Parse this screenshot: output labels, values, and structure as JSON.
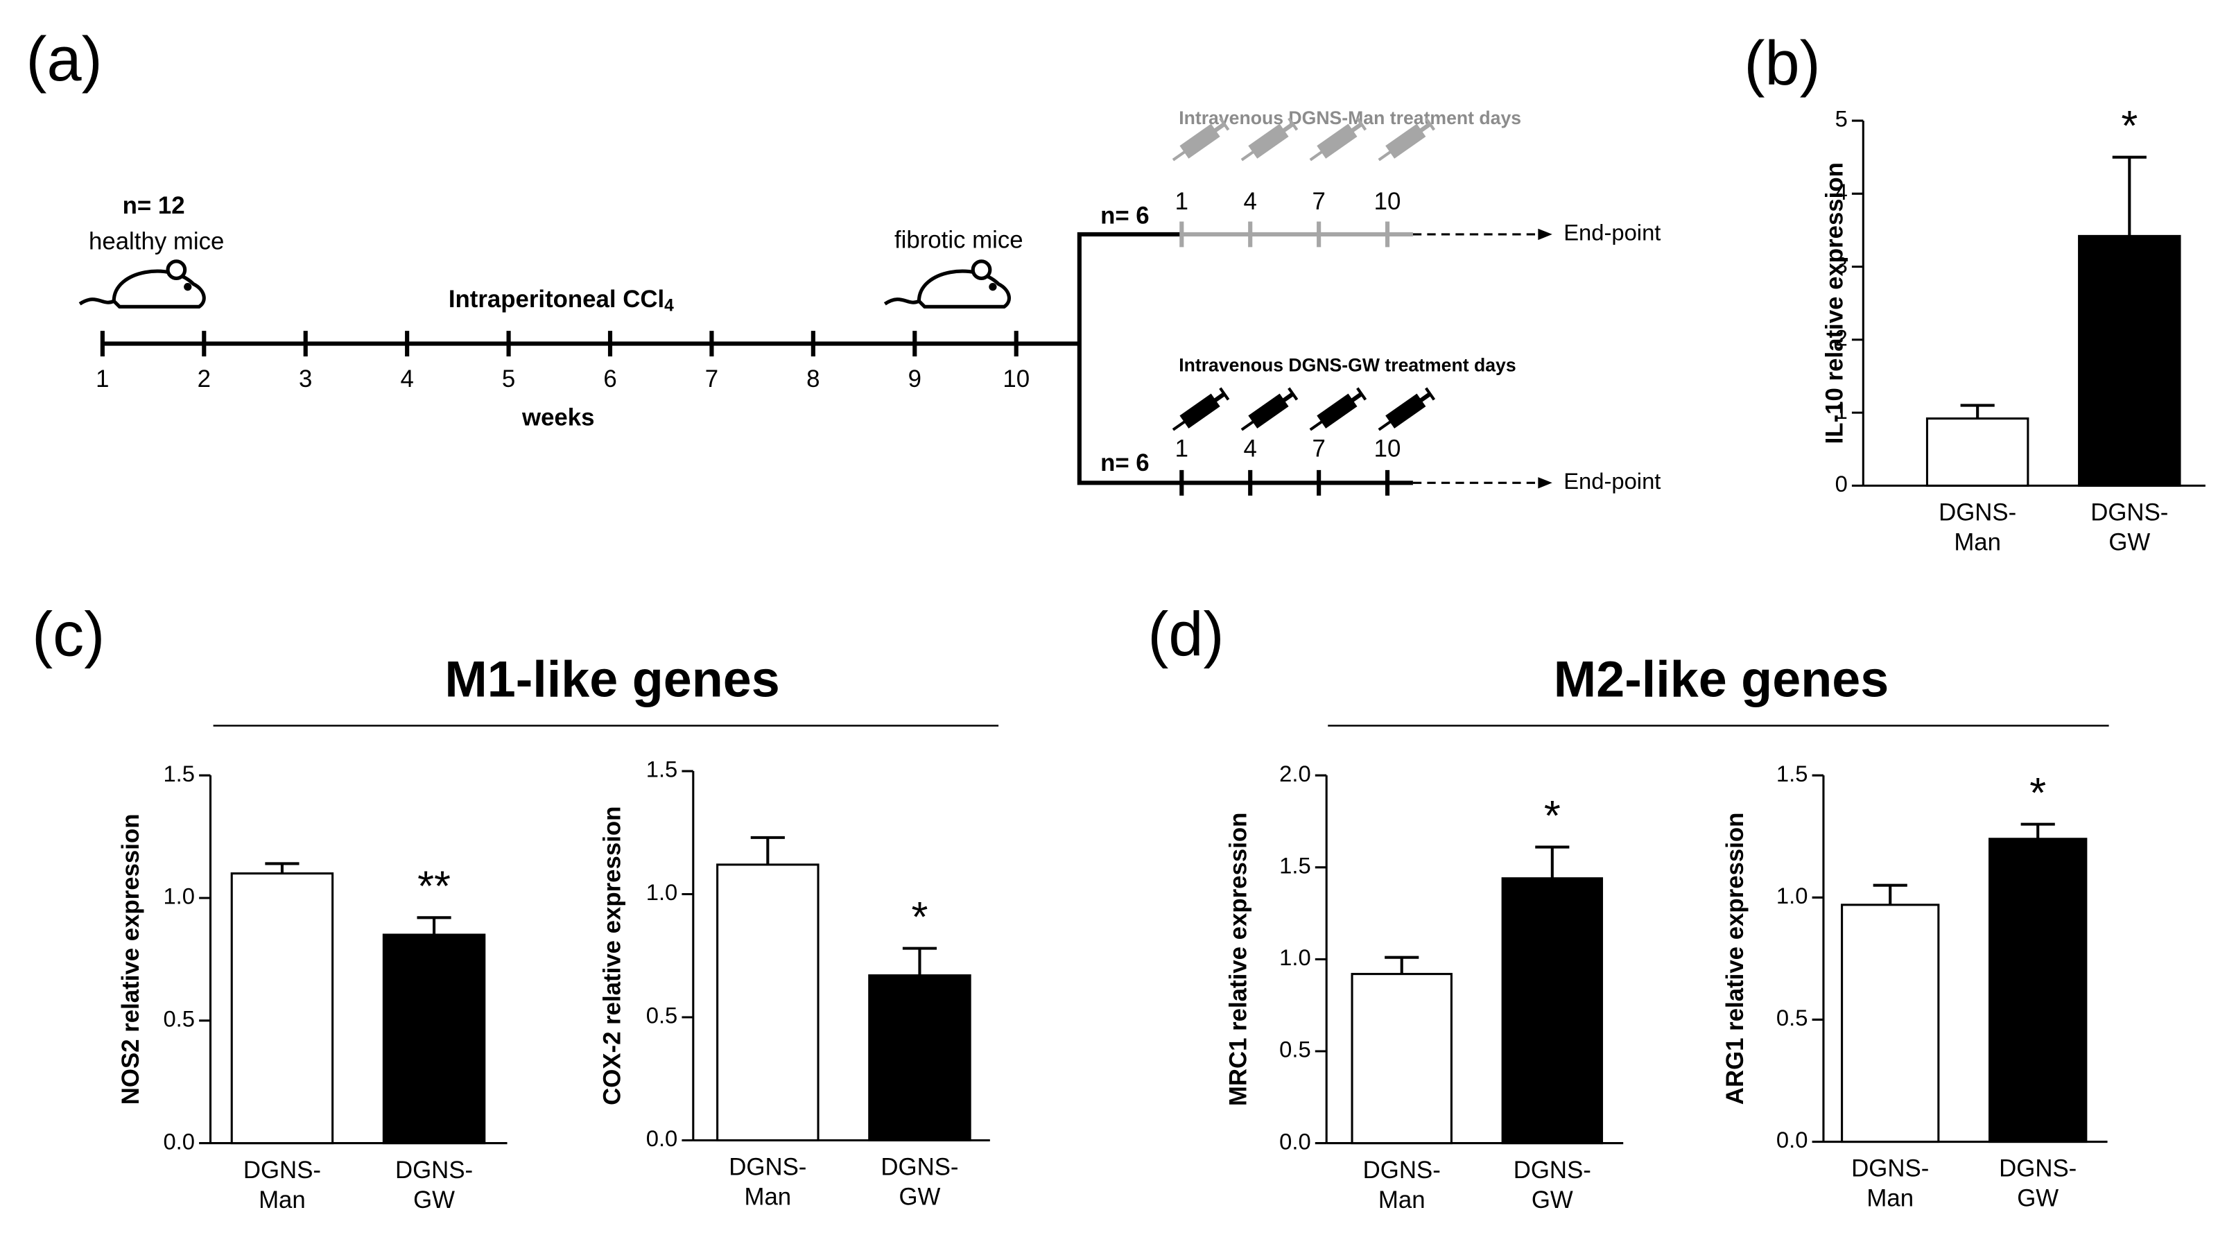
{
  "panel_labels": [
    "(a)",
    "(b)",
    "(c)",
    "(d)"
  ],
  "diagram": {
    "healthy": {
      "count": "n= 12",
      "label": "healthy mice"
    },
    "injection": {
      "text": "Intraperitoneal CCl",
      "subscript": "4"
    },
    "weeks": [
      1,
      2,
      3,
      4,
      5,
      6,
      7,
      8,
      9,
      10
    ],
    "weeks_label": "weeks",
    "fibrotic_label": "fibrotic mice",
    "branches": [
      {
        "count": "n= 6",
        "title": "Intravenous DGNS-Man treatment days",
        "days": [
          1,
          4,
          7,
          10
        ],
        "end": "End-point",
        "color": "#a6a6a6"
      },
      {
        "count": "n= 6",
        "title": "Intravenous DGNS-GW treatment days",
        "days": [
          1,
          4,
          7,
          10
        ],
        "end": "End-point",
        "color": "#000000"
      }
    ]
  },
  "groups": [
    "M1-like genes",
    "M2-like genes"
  ],
  "chart_data": [
    {
      "type": "bar",
      "ylabel": "IL-10 relative expression",
      "categories": [
        [
          "DGNS-",
          "Man"
        ],
        [
          "DGNS-",
          "GW"
        ]
      ],
      "values": [
        0.92,
        3.42
      ],
      "errors": [
        0.18,
        1.08
      ],
      "colors": [
        "#ffffff",
        "#000000"
      ],
      "significance": [
        null,
        "*"
      ],
      "ylim": [
        0,
        5
      ],
      "yticks": [
        0,
        1,
        2,
        3,
        4,
        5
      ]
    },
    {
      "type": "bar",
      "ylabel": "NOS2 relative expression",
      "categories": [
        [
          "DGNS-",
          "Man"
        ],
        [
          "DGNS-",
          "GW"
        ]
      ],
      "values": [
        1.1,
        0.85
      ],
      "errors": [
        0.04,
        0.07
      ],
      "colors": [
        "#ffffff",
        "#000000"
      ],
      "significance": [
        null,
        "**"
      ],
      "ylim": [
        0,
        1.5
      ],
      "yticks": [
        {
          "value": 0,
          "label": "0.0"
        },
        0.5,
        {
          "value": 1,
          "label": "1.0"
        },
        1.5
      ]
    },
    {
      "type": "bar",
      "ylabel": "COX-2 relative expression",
      "categories": [
        [
          "DGNS-",
          "Man"
        ],
        [
          "DGNS-",
          "GW"
        ]
      ],
      "values": [
        1.12,
        0.67
      ],
      "errors": [
        0.11,
        0.11
      ],
      "colors": [
        "#ffffff",
        "#000000"
      ],
      "significance": [
        null,
        "*"
      ],
      "ylim": [
        0,
        1.5
      ],
      "yticks": [
        {
          "value": 0,
          "label": "0.0"
        },
        0.5,
        {
          "value": 1,
          "label": "1.0"
        },
        1.5
      ]
    },
    {
      "type": "bar",
      "ylabel": "MRC1 relative expression",
      "categories": [
        [
          "DGNS-",
          "Man"
        ],
        [
          "DGNS-",
          "GW"
        ]
      ],
      "values": [
        0.92,
        1.44
      ],
      "errors": [
        0.09,
        0.17
      ],
      "colors": [
        "#ffffff",
        "#000000"
      ],
      "significance": [
        null,
        "*"
      ],
      "ylim": [
        0,
        2
      ],
      "yticks": [
        {
          "value": 0,
          "label": "0.0"
        },
        0.5,
        {
          "value": 1,
          "label": "1.0"
        },
        1.5,
        {
          "value": 2,
          "label": "2.0"
        }
      ]
    },
    {
      "type": "bar",
      "ylabel": "ARG1 relative expression",
      "categories": [
        [
          "DGNS-",
          "Man"
        ],
        [
          "DGNS-",
          "GW"
        ]
      ],
      "values": [
        0.97,
        1.24
      ],
      "errors": [
        0.08,
        0.06
      ],
      "colors": [
        "#ffffff",
        "#000000"
      ],
      "significance": [
        null,
        "*"
      ],
      "ylim": [
        0,
        1.5
      ],
      "yticks": [
        {
          "value": 0,
          "label": "0.0"
        },
        0.5,
        {
          "value": 1,
          "label": "1.0"
        },
        1.5
      ]
    }
  ]
}
